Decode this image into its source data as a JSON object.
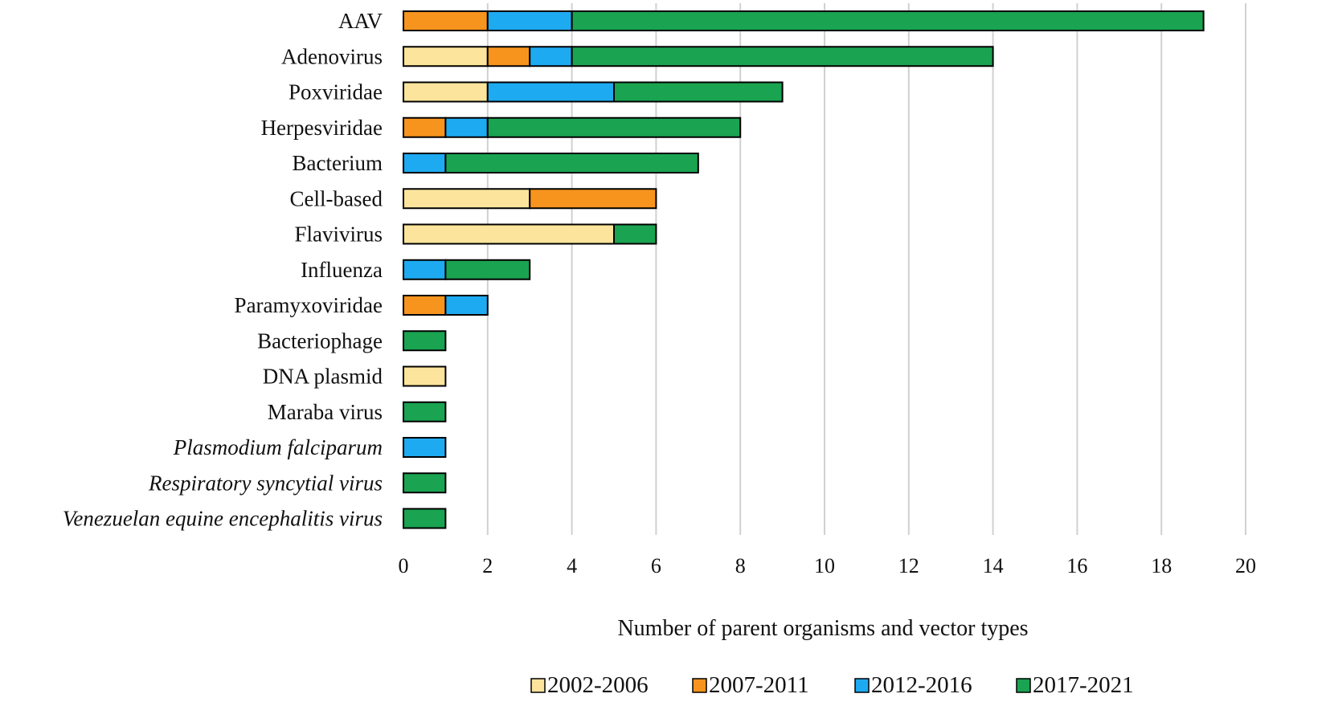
{
  "chart_data": {
    "type": "bar",
    "orientation": "horizontal",
    "stacked": true,
    "title": "",
    "xlabel": "Number of parent organisms and vector types",
    "ylabel": "",
    "xlim": [
      0,
      20
    ],
    "xticks": [
      0,
      2,
      4,
      6,
      8,
      10,
      12,
      14,
      16,
      18,
      20
    ],
    "grid": true,
    "legend_position": "bottom",
    "categories": [
      "AAV",
      "Adenovirus",
      "Poxviridae",
      "Herpesviridae",
      "Bacterium",
      "Cell-based",
      "Flavivirus",
      "Influenza",
      "Paramyxoviridae",
      "Bacteriophage",
      "DNA plasmid",
      "Maraba virus",
      "Plasmodium falciparum",
      "Respiratory syncytial virus",
      "Venezuelan equine encephalitis virus"
    ],
    "italic_categories": [
      "Plasmodium falciparum",
      "Respiratory syncytial virus",
      "Venezuelan equine encephalitis virus"
    ],
    "series": [
      {
        "name": "2002-2006",
        "color": "#fce49c",
        "values": [
          0,
          2,
          2,
          0,
          0,
          3,
          5,
          0,
          0,
          0,
          1,
          0,
          0,
          0,
          0
        ]
      },
      {
        "name": "2007-2011",
        "color": "#f7941d",
        "values": [
          2,
          1,
          0,
          1,
          0,
          3,
          0,
          0,
          1,
          0,
          0,
          0,
          0,
          0,
          0
        ]
      },
      {
        "name": "2012-2016",
        "color": "#1eaaf1",
        "values": [
          2,
          1,
          3,
          1,
          1,
          0,
          0,
          1,
          1,
          0,
          0,
          0,
          1,
          0,
          0
        ]
      },
      {
        "name": "2017-2021",
        "color": "#1aa351",
        "values": [
          15,
          10,
          4,
          6,
          6,
          0,
          1,
          2,
          0,
          1,
          0,
          1,
          0,
          1,
          1
        ]
      }
    ]
  }
}
